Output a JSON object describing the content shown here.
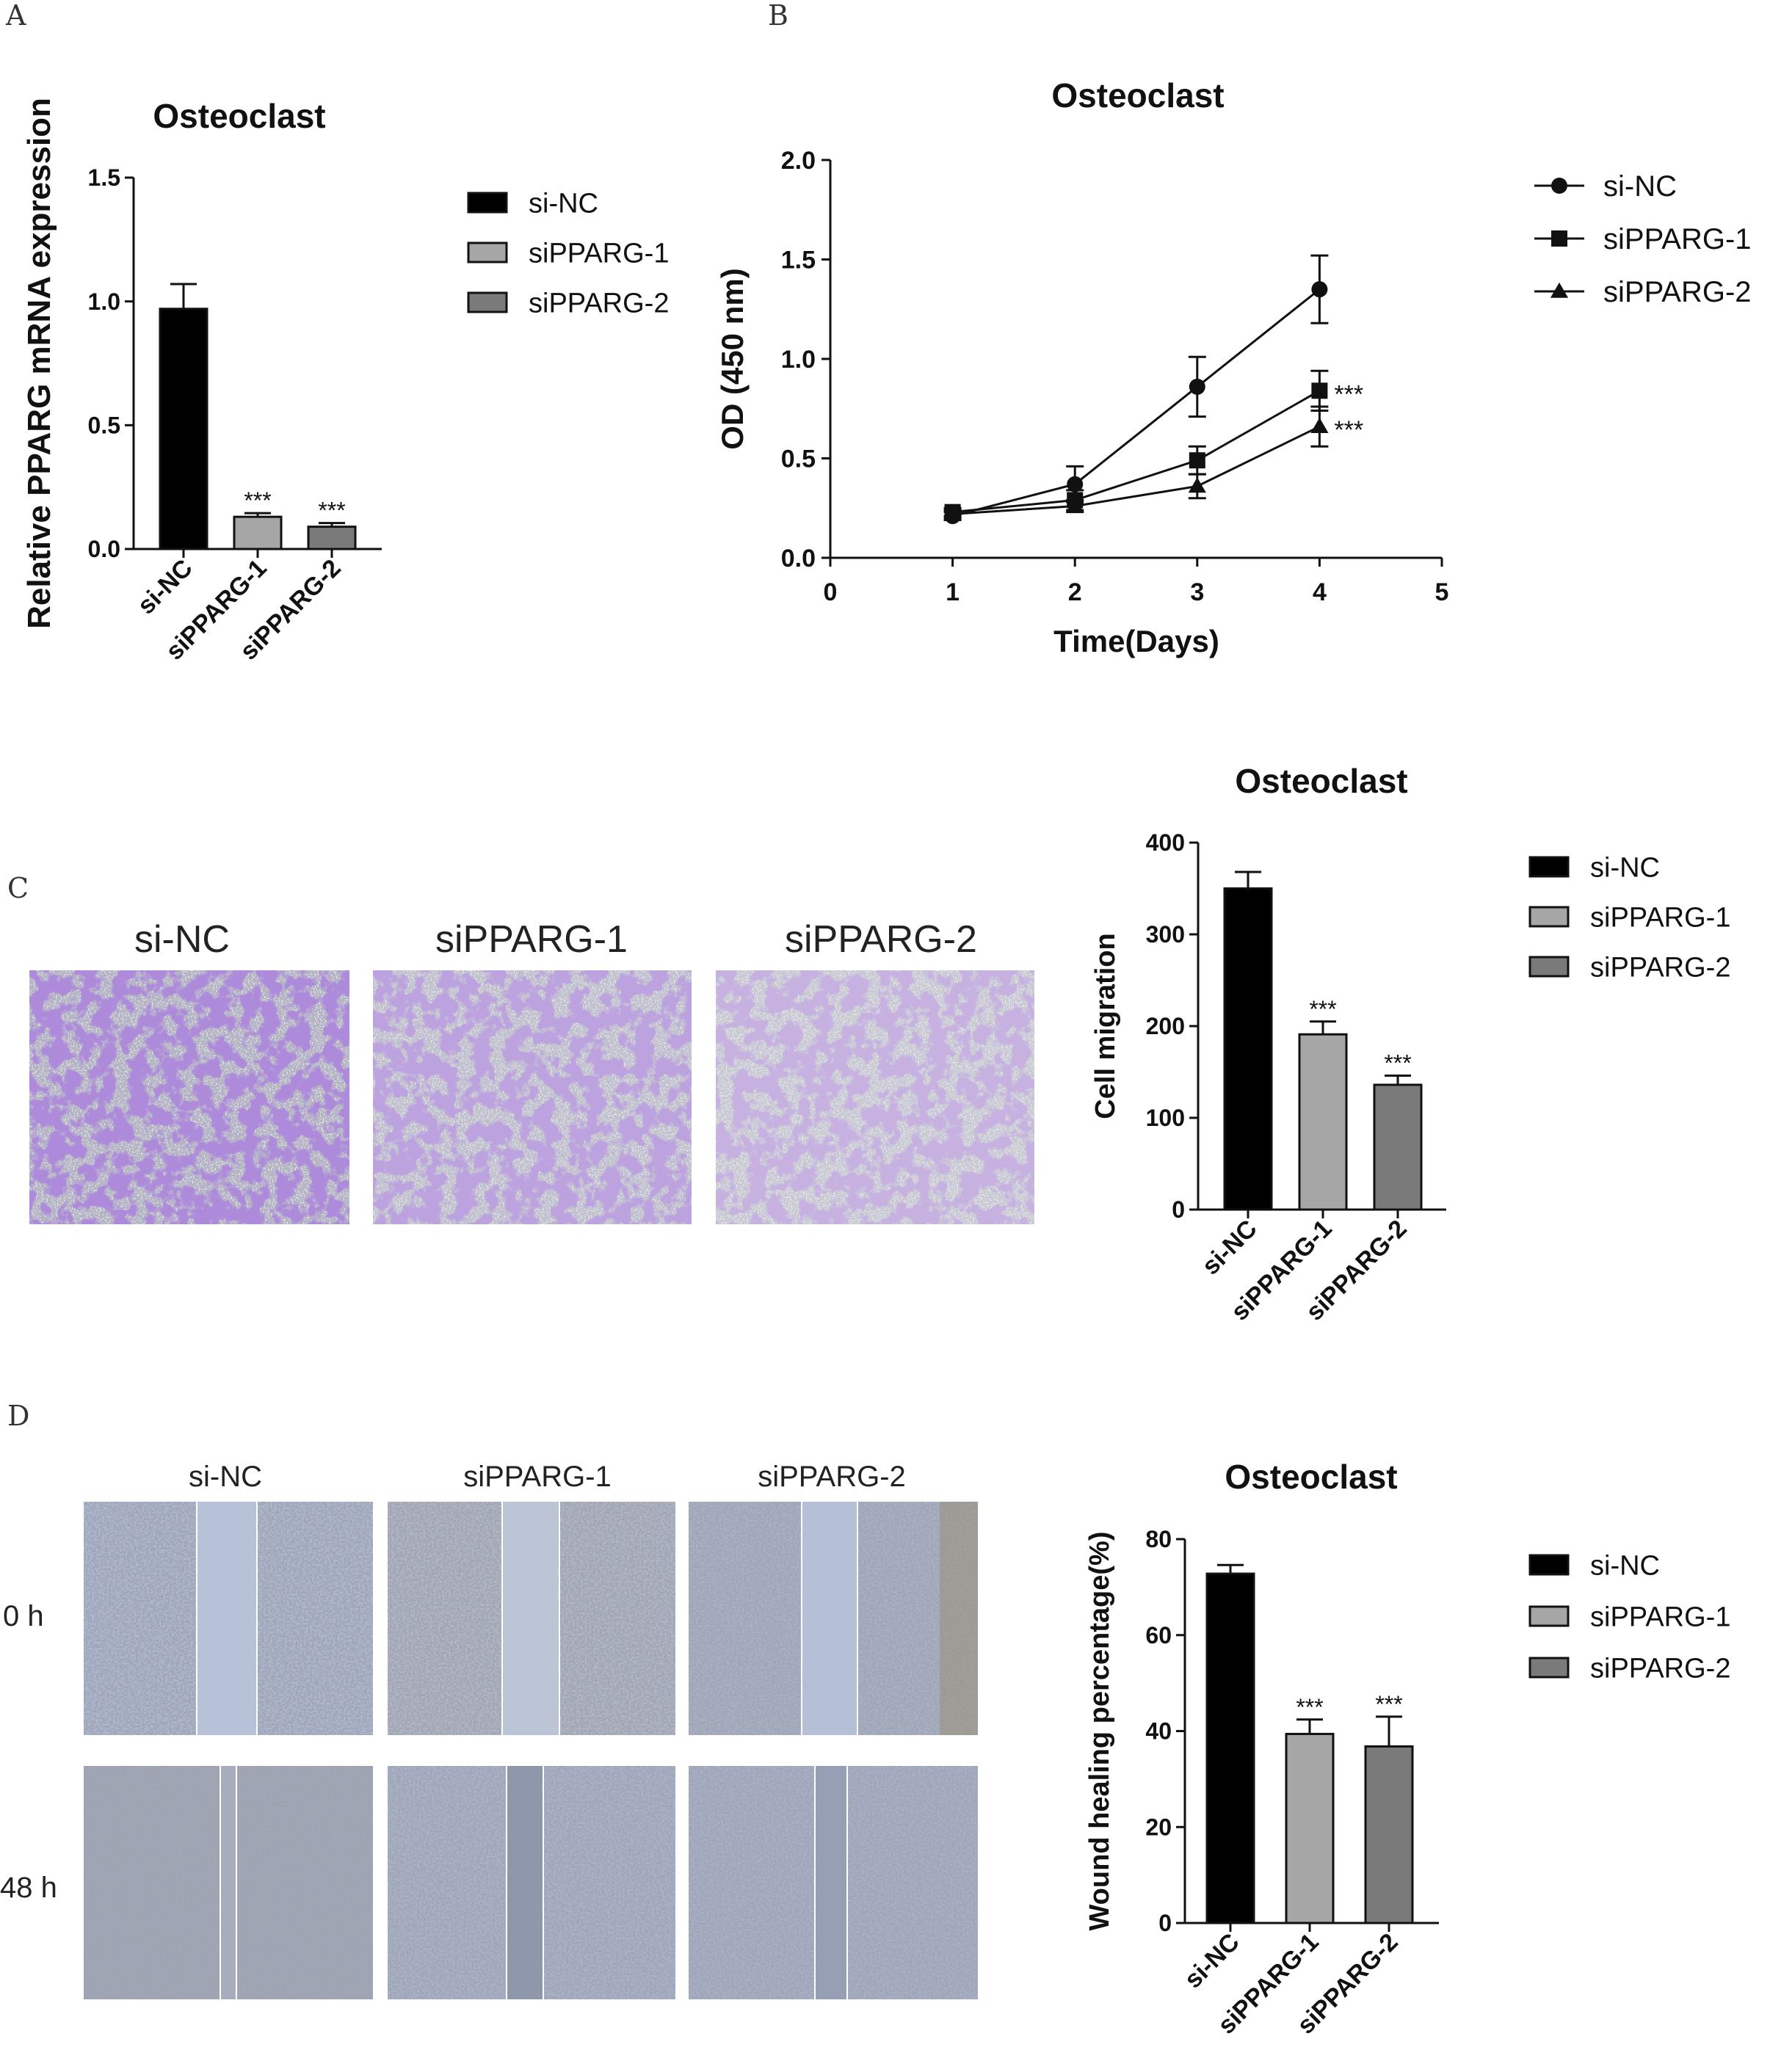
{
  "panel_letters": {
    "a": "A",
    "b": "B",
    "c": "C",
    "d": "D"
  },
  "colors": {
    "si_nc": "#000000",
    "sippar_1": "#a6a6a6",
    "sippar_2": "#7a7a7a",
    "stain": "#6a3fb0",
    "wound_bg": "#b9c3d8"
  },
  "groups": [
    "si-NC",
    "siPPARG-1",
    "siPPARG-2"
  ],
  "significance": "***",
  "images_c": {
    "labels": [
      "si-NC",
      "siPPARG-1",
      "siPPARG-2"
    ]
  },
  "images_d": {
    "col_labels": [
      "si-NC",
      "siPPARG-1",
      "siPPARG-2"
    ],
    "row_labels": [
      "0 h",
      "48 h"
    ]
  },
  "chart_data": [
    {
      "id": "A",
      "type": "bar",
      "title": "Osteoclast",
      "ylabel": "Relative PPARG mRNA expression",
      "categories": [
        "si-NC",
        "siPPARG-1",
        "siPPARG-2"
      ],
      "values": [
        0.97,
        0.13,
        0.09
      ],
      "errors": [
        0.1,
        0.015,
        0.015
      ],
      "annotations": [
        "",
        "***",
        "***"
      ],
      "ylim": [
        0,
        1.5
      ],
      "yticks": [
        "0.0",
        "0.5",
        "1.0",
        "1.5"
      ],
      "legend": [
        "si-NC",
        "siPPARG-1",
        "siPPARG-2"
      ],
      "legend_position": "right"
    },
    {
      "id": "B",
      "type": "line",
      "title": "Osteoclast",
      "xlabel": "Time(Days)",
      "ylabel": "OD (450 nm)",
      "xlim": [
        0,
        5
      ],
      "ylim": [
        0,
        2.0
      ],
      "xticks": [
        "0",
        "1",
        "2",
        "3",
        "4",
        "5"
      ],
      "yticks": [
        "0.0",
        "0.5",
        "1.0",
        "1.5",
        "2.0"
      ],
      "x": [
        1,
        2,
        3,
        4
      ],
      "series": [
        {
          "name": "si-NC",
          "marker": "circle",
          "values": [
            0.21,
            0.37,
            0.86,
            1.35
          ],
          "errors": [
            0.02,
            0.09,
            0.15,
            0.17
          ],
          "annotation": ""
        },
        {
          "name": "siPPARG-1",
          "marker": "square",
          "values": [
            0.23,
            0.29,
            0.49,
            0.84
          ],
          "errors": [
            0.02,
            0.05,
            0.07,
            0.1
          ],
          "annotation": "***"
        },
        {
          "name": "siPPARG-2",
          "marker": "triangle",
          "values": [
            0.22,
            0.26,
            0.36,
            0.66
          ],
          "errors": [
            0.02,
            0.03,
            0.06,
            0.1
          ],
          "annotation": "***"
        }
      ],
      "legend_position": "right"
    },
    {
      "id": "C",
      "type": "bar",
      "title": "Osteoclast",
      "ylabel": "Cell migration",
      "categories": [
        "si-NC",
        "siPPARG-1",
        "siPPARG-2"
      ],
      "values": [
        350,
        191,
        136
      ],
      "errors": [
        18,
        14,
        10
      ],
      "annotations": [
        "",
        "***",
        "***"
      ],
      "ylim": [
        0,
        400
      ],
      "yticks": [
        "0",
        "100",
        "200",
        "300",
        "400"
      ],
      "legend": [
        "si-NC",
        "siPPARG-1",
        "siPPARG-2"
      ],
      "legend_position": "right"
    },
    {
      "id": "D",
      "type": "bar",
      "title": "Osteoclast",
      "ylabel": "Wound healing percentage(%)",
      "categories": [
        "si-NC",
        "siPPARG-1",
        "siPPARG-2"
      ],
      "values": [
        72.8,
        39.4,
        36.8
      ],
      "errors": [
        1.8,
        3.0,
        6.2
      ],
      "annotations": [
        "",
        "***",
        "***"
      ],
      "ylim": [
        0,
        80
      ],
      "yticks": [
        "0",
        "20",
        "40",
        "60",
        "80"
      ],
      "legend": [
        "si-NC",
        "siPPARG-1",
        "siPPARG-2"
      ],
      "legend_position": "right"
    }
  ]
}
